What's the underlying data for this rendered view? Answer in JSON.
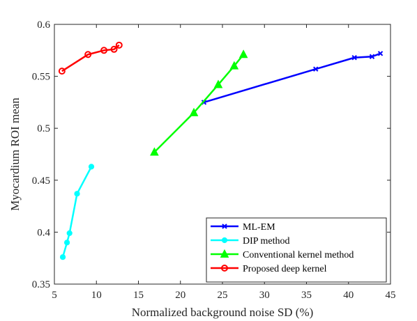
{
  "chart_data": {
    "type": "line",
    "xlabel": "Normalized background noise SD (%)",
    "ylabel": "Myocardium ROI mean",
    "xlim": [
      5,
      45
    ],
    "ylim": [
      0.35,
      0.6
    ],
    "xticks": [
      5,
      10,
      15,
      20,
      25,
      30,
      35,
      40,
      45
    ],
    "yticks": [
      0.35,
      0.4,
      0.45,
      0.5,
      0.55,
      0.6
    ],
    "xtick_labels": [
      "5",
      "10",
      "15",
      "20",
      "25",
      "30",
      "35",
      "40",
      "45"
    ],
    "ytick_labels": [
      "0.35",
      "0.4",
      "0.45",
      "0.5",
      "0.55",
      "0.6"
    ],
    "grid": false,
    "legend_position": "bottom-right",
    "series": [
      {
        "name": "ML-EM",
        "color": "#0000ff",
        "marker": "x",
        "x": [
          22.8,
          36.1,
          40.7,
          42.8,
          43.8
        ],
        "y": [
          0.525,
          0.557,
          0.568,
          0.569,
          0.572
        ]
      },
      {
        "name": "DIP method",
        "color": "#00ffff",
        "marker": "circle-filled",
        "x": [
          6.0,
          6.5,
          6.8,
          7.7,
          9.4
        ],
        "y": [
          0.376,
          0.39,
          0.399,
          0.437,
          0.463
        ]
      },
      {
        "name": "Conventional kernel method",
        "color": "#00ff00",
        "marker": "triangle-filled",
        "x": [
          16.9,
          21.6,
          24.5,
          26.4,
          27.5
        ],
        "y": [
          0.477,
          0.515,
          0.542,
          0.56,
          0.571
        ]
      },
      {
        "name": "Proposed deep kernel",
        "color": "#ff0000",
        "marker": "circle-open",
        "x": [
          5.9,
          9.0,
          10.9,
          12.1,
          12.7
        ],
        "y": [
          0.555,
          0.571,
          0.575,
          0.576,
          0.58
        ]
      }
    ]
  }
}
